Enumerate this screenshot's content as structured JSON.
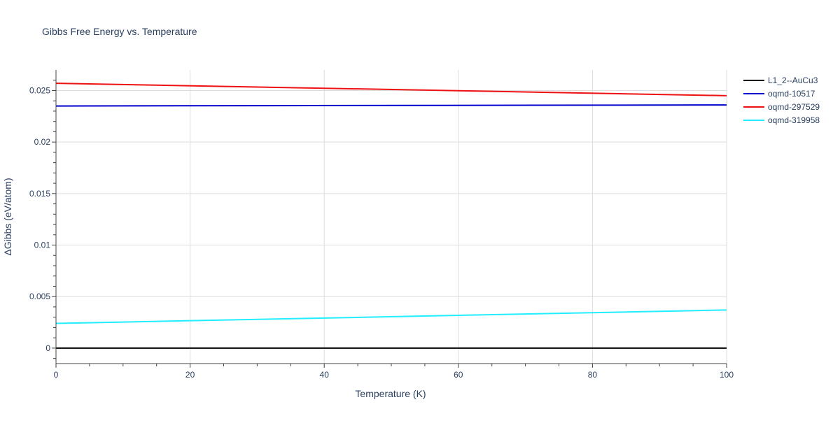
{
  "chart_data": {
    "type": "line",
    "title": "Gibbs Free Energy vs. Temperature",
    "xlabel": "Temperature (K)",
    "ylabel": "ΔGibbs (eV/atom)",
    "xlim": [
      0,
      100
    ],
    "ylim": [
      -0.0015,
      0.027
    ],
    "x_ticks": [
      0,
      20,
      40,
      60,
      80,
      100
    ],
    "y_ticks": [
      0,
      0.005,
      0.01,
      0.015,
      0.02,
      0.025
    ],
    "grid": true,
    "legend_position": "top-right",
    "series": [
      {
        "name": "L1_2--AuCu3",
        "color": "#000000",
        "x": [
          0,
          100
        ],
        "y": [
          0,
          0
        ]
      },
      {
        "name": "oqmd-10517",
        "color": "#0000cc",
        "x": [
          0,
          100
        ],
        "y": [
          0.0235,
          0.0236
        ]
      },
      {
        "name": "oqmd-297529",
        "color": "#ee1111",
        "x": [
          0,
          100
        ],
        "y": [
          0.0257,
          0.0245
        ]
      },
      {
        "name": "oqmd-319958",
        "color": "#22eeff",
        "x": [
          0,
          100
        ],
        "y": [
          0.0024,
          0.0037
        ]
      }
    ]
  }
}
